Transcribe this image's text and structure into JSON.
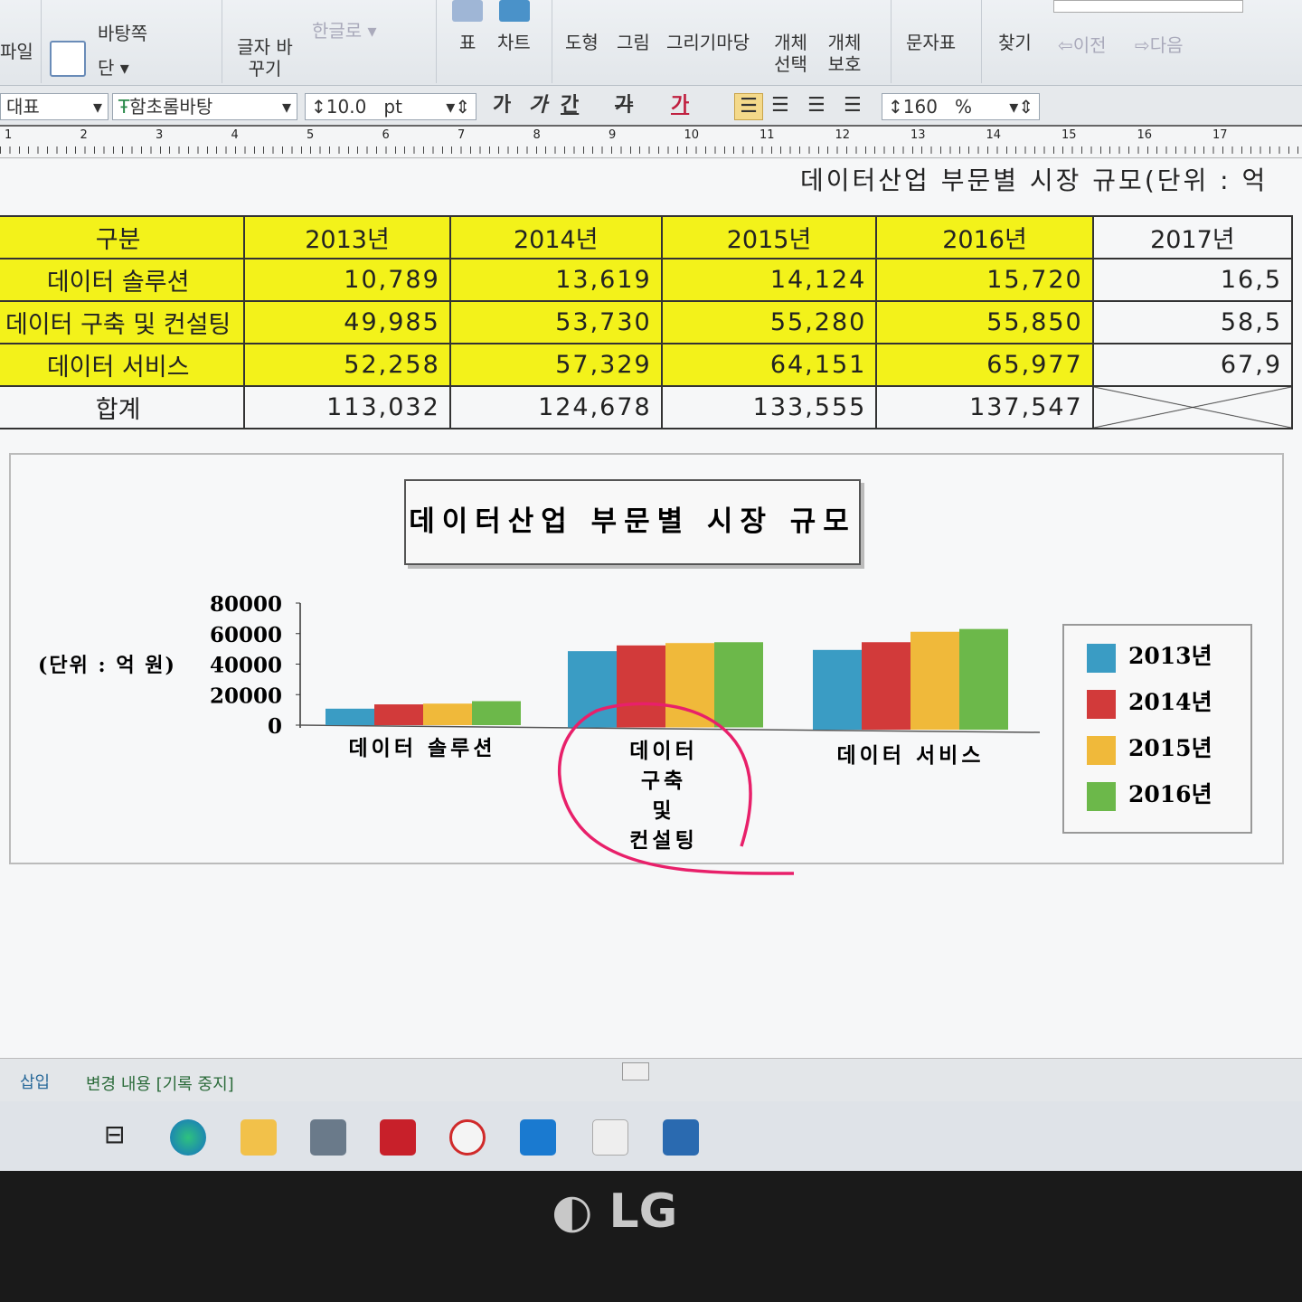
{
  "ribbon": {
    "items": [
      "바탕쪽",
      "단",
      "글자 바꾸기",
      "한글로",
      "표",
      "차트",
      "도형",
      "그림",
      "그리기마당",
      "개체 선택",
      "개체 보호",
      "문자표",
      "찾기",
      "이전",
      "다음"
    ],
    "partial_left": "파일"
  },
  "format_bar": {
    "style": "대표",
    "font": "함초롬바탕",
    "size": "10.0",
    "size_unit": "pt",
    "bold": "가",
    "italic": "가",
    "underline": "간",
    "strike": "가",
    "color": "가",
    "line_spacing": "160",
    "line_spacing_unit": "%"
  },
  "ruler": {
    "marks": [
      "1",
      "2",
      "3",
      "4",
      "5",
      "6",
      "7",
      "8",
      "9",
      "10",
      "11",
      "12",
      "13",
      "14",
      "15",
      "16",
      "17"
    ]
  },
  "document": {
    "caption": "데이터산업 부문별 시장 규모(단위 : 억",
    "table": {
      "headers": [
        "구분",
        "2013년",
        "2014년",
        "2015년",
        "2016년",
        "2017년"
      ],
      "rows": [
        [
          "데이터 솔루션",
          "10,789",
          "13,619",
          "14,124",
          "15,720",
          "16,5"
        ],
        [
          "데이터 구축 및 컨설팅",
          "49,985",
          "53,730",
          "55,280",
          "55,850",
          "58,5"
        ],
        [
          "데이터 서비스",
          "52,258",
          "57,329",
          "64,151",
          "65,977",
          "67,9"
        ],
        [
          "합계",
          "113,032",
          "124,678",
          "133,555",
          "137,547",
          ""
        ]
      ]
    }
  },
  "chart_data": {
    "type": "bar",
    "title": "데이터산업 부문별 시장 규모",
    "ylabel": "(단위 : 억 원)",
    "ylim": [
      0,
      80000
    ],
    "yticks": [
      "80000",
      "60000",
      "40000",
      "20000",
      "0"
    ],
    "categories": [
      "데이터 솔루션",
      "데이터 구축 및 컨설팅",
      "데이터 서비스"
    ],
    "legend_position": "right",
    "series": [
      {
        "name": "2013년",
        "color": "#3a9cc4",
        "values": [
          10789,
          49985,
          52258
        ]
      },
      {
        "name": "2014년",
        "color": "#d23a3a",
        "values": [
          13619,
          53730,
          57329
        ]
      },
      {
        "name": "2015년",
        "color": "#f0b93a",
        "values": [
          14124,
          55280,
          64151
        ]
      },
      {
        "name": "2016년",
        "color": "#6cb84a",
        "values": [
          15720,
          55850,
          65977
        ]
      }
    ]
  },
  "status": {
    "mode": "삽입",
    "track": "변경 내용 [기록 중지]"
  },
  "taskbar": {
    "apps": [
      "task-view",
      "edge",
      "file-explorer",
      "store",
      "app-red",
      "sync",
      "mail",
      "viewer",
      "hangul"
    ]
  },
  "bezel": {
    "brand": "LG"
  }
}
